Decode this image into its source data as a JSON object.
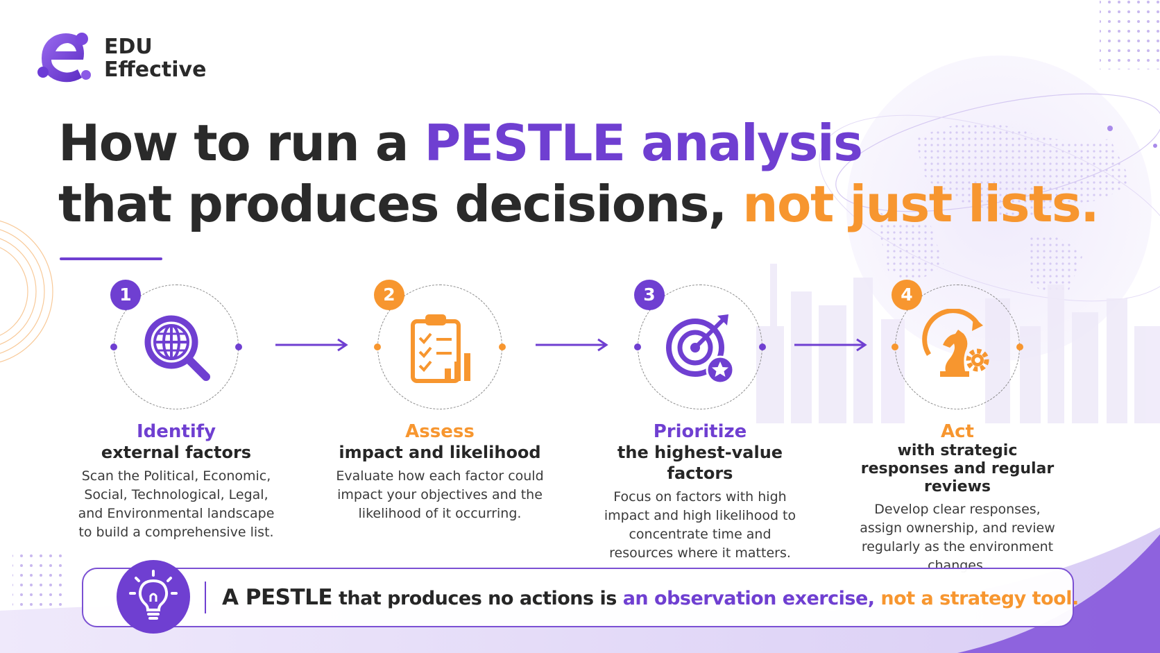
{
  "brand": {
    "line1": "EDU",
    "line2": "Effective"
  },
  "headline": {
    "line1_start": "How to run a",
    "line1_accent": "PESTLE analysis",
    "line2_start": "that produces decisions,",
    "line2_accent": "not just lists."
  },
  "steps": [
    {
      "number": "1",
      "title": "Identify",
      "subtitle": "external factors",
      "description": "Scan the Political, Economic, Social, Technological, Legal, and Environmental landscape to build a comprehensive list.",
      "icon": "globe-search-icon"
    },
    {
      "number": "2",
      "title": "Assess",
      "subtitle": "impact and likelihood",
      "description": "Evaluate how each factor could impact your objectives and the likelihood of it occurring.",
      "icon": "clipboard-chart-icon"
    },
    {
      "number": "3",
      "title": "Prioritize",
      "subtitle": "the highest-value factors",
      "description": "Focus on factors with high impact and high likelihood to concentrate time and resources where it matters.",
      "icon": "target-star-icon"
    },
    {
      "number": "4",
      "title": "Act",
      "subtitle": "with strategic responses and regular reviews",
      "description": "Develop clear responses, assign ownership, and review regularly as the environment changes.",
      "icon": "chess-knight-gear-icon"
    }
  ],
  "banner": {
    "part1": "A PESTLE",
    "part2": " that produces no actions is ",
    "part3": "an observation exercise,",
    "part4": " not a strategy tool."
  },
  "colors": {
    "purple": "#6f3fd1",
    "orange": "#f7962f",
    "text": "#262626"
  }
}
